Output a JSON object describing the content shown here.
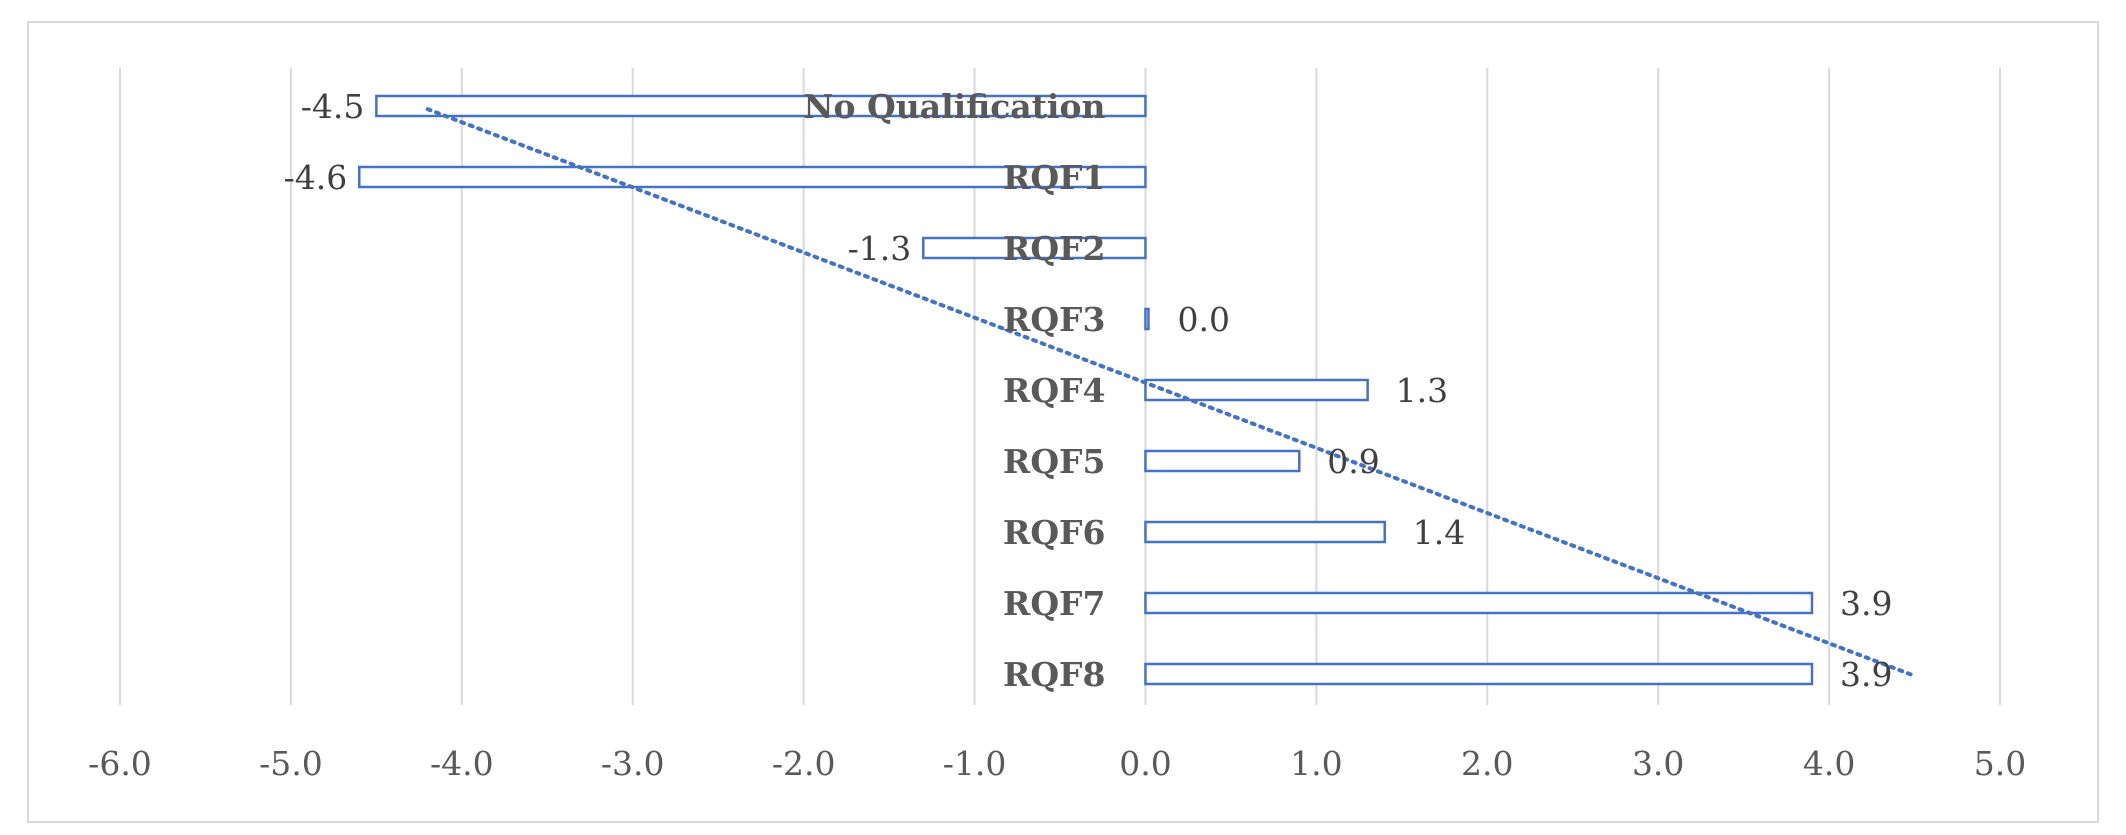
{
  "chart_data": {
    "type": "bar",
    "orientation": "horizontal",
    "categories": [
      "No Qualification",
      "RQF1",
      "RQF2",
      "RQF3",
      "RQF4",
      "RQF5",
      "RQF6",
      "RQF7",
      "RQF8"
    ],
    "values": [
      -4.5,
      -4.6,
      -1.3,
      0.0,
      1.3,
      0.9,
      1.4,
      3.9,
      3.9
    ],
    "data_labels": [
      "-4.5",
      "-4.6",
      "-1.3",
      "0.0",
      "1.3",
      "0.9",
      "1.4",
      "3.9",
      "3.9"
    ],
    "xlim": [
      -6.0,
      5.0
    ],
    "x_ticks": [
      -6.0,
      -5.0,
      -4.0,
      -3.0,
      -2.0,
      -1.0,
      0.0,
      1.0,
      2.0,
      3.0,
      4.0,
      5.0
    ],
    "x_tick_labels": [
      "-6.0",
      "-5.0",
      "-4.0",
      "-3.0",
      "-2.0",
      "-1.0",
      "0.0",
      "1.0",
      "2.0",
      "3.0",
      "4.0",
      "5.0"
    ],
    "trendline": {
      "type": "linear",
      "style": "dotted",
      "start": -4.2,
      "end": 4.5
    },
    "grid": "vertical",
    "legend": "none",
    "title": "",
    "xlabel": "",
    "ylabel": "",
    "colors": {
      "bar_outline": "#4472c4",
      "bar_fill": "#ffffff",
      "trendline": "#4472c4",
      "grid": "#d9d9d9",
      "axis_text": "#595959",
      "frame": "#d9d9d9"
    }
  }
}
